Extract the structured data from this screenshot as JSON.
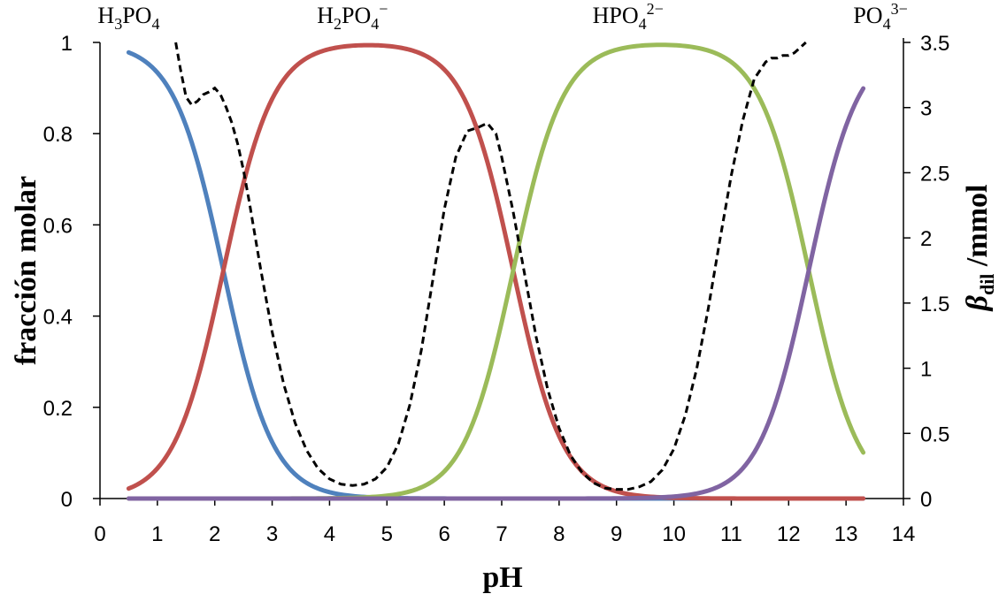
{
  "chart_data": {
    "type": "line",
    "xlabel": "pH",
    "ylabel_left": "fracción molar",
    "ylabel_right": {
      "symbol": "β",
      "subscript": "dil",
      "unit": " /mmol"
    },
    "xlim": [
      0,
      14
    ],
    "ylim_left": [
      0,
      1
    ],
    "ylim_right": [
      0,
      3.5
    ],
    "x_ticks": [
      "0",
      "1",
      "2",
      "3",
      "4",
      "5",
      "6",
      "7",
      "8",
      "9",
      "10",
      "11",
      "12",
      "13",
      "14"
    ],
    "y_left_ticks": [
      "0",
      "0.2",
      "0.4",
      "0.6",
      "0.8",
      "1"
    ],
    "y_right_ticks": [
      "0",
      "0.5",
      "1",
      "1.5",
      "2",
      "2.5",
      "3",
      "3.5"
    ],
    "grid": false,
    "species_labels": [
      {
        "base": "H",
        "parts": [
          [
            "H",
            ""
          ],
          [
            "3",
            "sub"
          ],
          [
            "PO",
            ""
          ],
          [
            "4",
            "sub"
          ]
        ],
        "at_x": 0.5
      },
      {
        "parts": [
          [
            "H",
            ""
          ],
          [
            "2",
            "sub"
          ],
          [
            "PO",
            ""
          ],
          [
            "4",
            "sub"
          ],
          [
            "−",
            "sup"
          ]
        ],
        "at_x": 4.4
      },
      {
        "parts": [
          [
            "HPO",
            ""
          ],
          [
            "4",
            "sub"
          ],
          [
            "2−",
            "sup"
          ]
        ],
        "at_x": 9.2
      },
      {
        "parts": [
          [
            "PO",
            ""
          ],
          [
            "4",
            "sub"
          ],
          [
            "3−",
            "sup"
          ]
        ],
        "at_x": 13.6
      }
    ],
    "pKa": [
      2.15,
      7.2,
      12.35
    ],
    "x_range": [
      0.5,
      13.3
    ],
    "series": [
      {
        "key": "h3po4",
        "color": "#4f81bd",
        "axis": "left"
      },
      {
        "key": "h2po4",
        "color": "#c0504d",
        "axis": "left"
      },
      {
        "key": "hpo4",
        "color": "#9bbb59",
        "axis": "left"
      },
      {
        "key": "po4",
        "color": "#8064a2",
        "axis": "left"
      }
    ],
    "beta_dil": {
      "axis": "right",
      "style": "dashed",
      "color": "#000000",
      "x": [
        1.32,
        1.4,
        1.5,
        1.6,
        1.7,
        1.8,
        1.9,
        2.0,
        2.1,
        2.2,
        2.3,
        2.4,
        2.5,
        2.6,
        2.7,
        2.8,
        3.0,
        3.2,
        3.4,
        3.6,
        3.8,
        4.0,
        4.2,
        4.4,
        4.6,
        4.8,
        5.0,
        5.2,
        5.4,
        5.6,
        5.8,
        6.0,
        6.2,
        6.4,
        6.6,
        6.75,
        6.9,
        7.0,
        7.2,
        7.4,
        7.6,
        7.8,
        8.0,
        8.2,
        8.4,
        8.6,
        8.8,
        9.0,
        9.2,
        9.4,
        9.6,
        9.8,
        10.0,
        10.2,
        10.4,
        10.6,
        10.8,
        11.0,
        11.2,
        11.4,
        11.6,
        11.7,
        11.8,
        11.9,
        12.0,
        12.1,
        12.2,
        12.3
      ],
      "y": [
        3.5,
        3.3,
        3.08,
        3.02,
        3.05,
        3.1,
        3.12,
        3.15,
        3.1,
        3.0,
        2.88,
        2.72,
        2.52,
        2.28,
        2.02,
        1.76,
        1.28,
        0.88,
        0.58,
        0.37,
        0.23,
        0.15,
        0.11,
        0.1,
        0.11,
        0.15,
        0.24,
        0.42,
        0.72,
        1.14,
        1.68,
        2.22,
        2.62,
        2.82,
        2.85,
        2.88,
        2.8,
        2.62,
        2.2,
        1.72,
        1.24,
        0.84,
        0.54,
        0.33,
        0.2,
        0.12,
        0.08,
        0.07,
        0.07,
        0.09,
        0.13,
        0.22,
        0.38,
        0.64,
        1.0,
        1.46,
        1.98,
        2.48,
        2.9,
        3.22,
        3.35,
        3.38,
        3.38,
        3.4,
        3.4,
        3.42,
        3.46,
        3.5
      ]
    }
  }
}
